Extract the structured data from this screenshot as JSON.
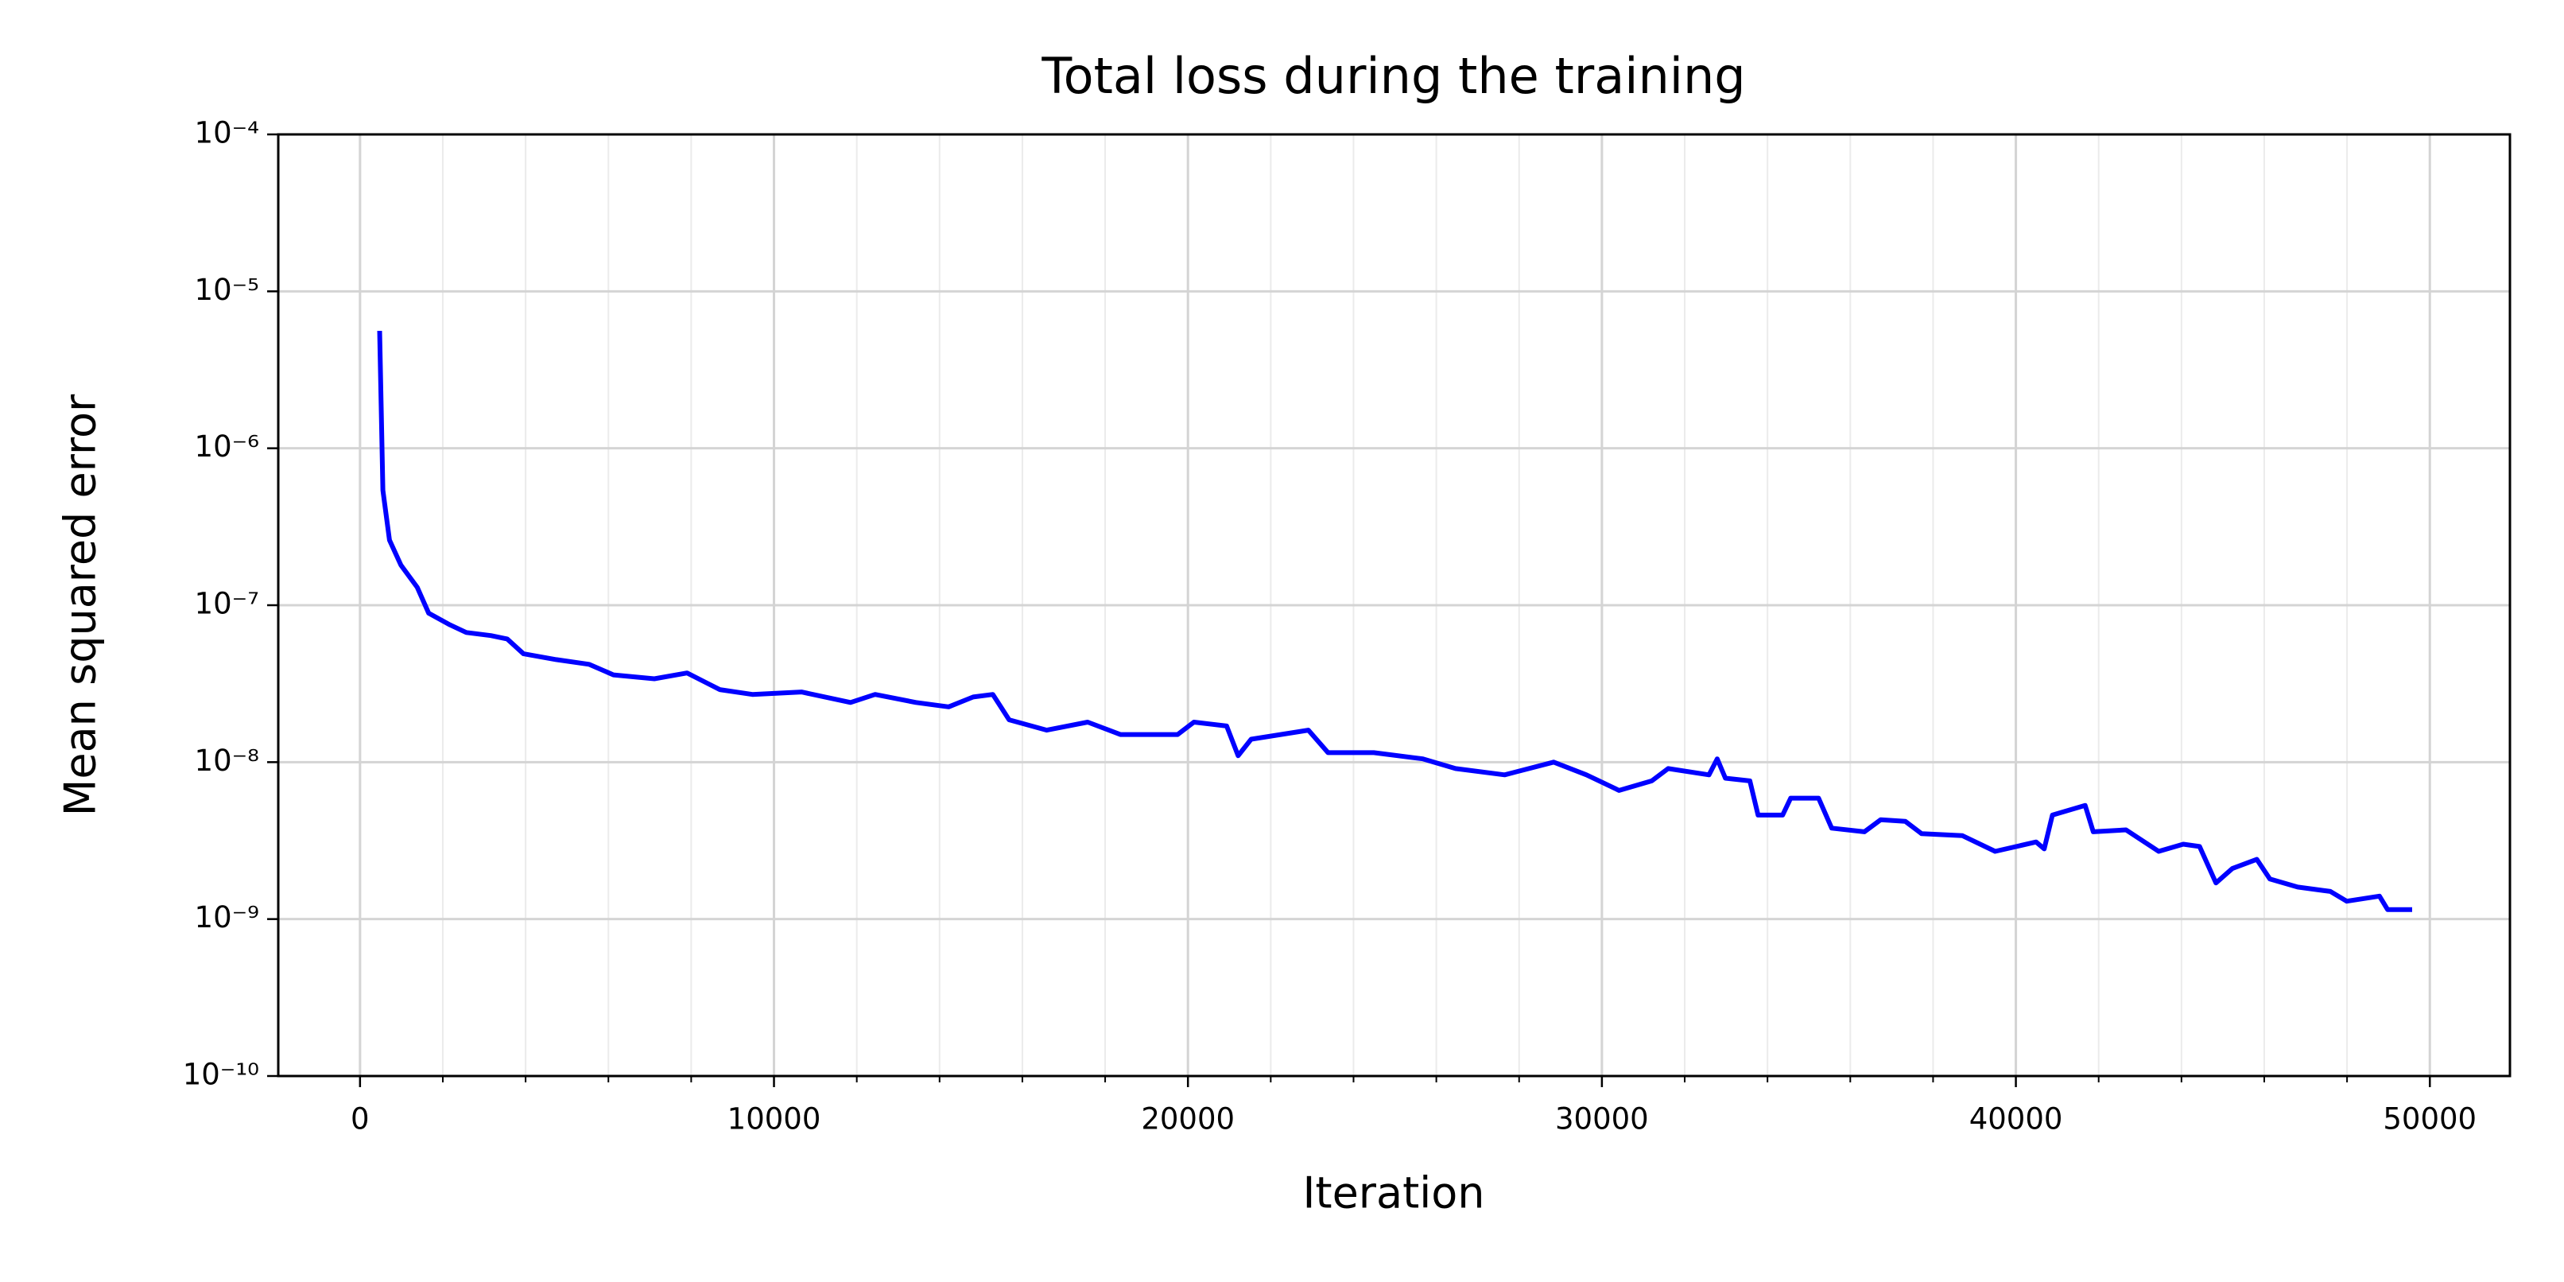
{
  "chart_data": {
    "type": "line",
    "title": "Total loss during the training",
    "x_label": "Iteration",
    "y_label": "Mean squared error",
    "x": [
      474,
      553,
      711,
      988,
      1383,
      1659,
      2173,
      2568,
      3160,
      3555,
      3950,
      4740,
      5530,
      6123,
      7110,
      7900,
      8690,
      9480,
      10665,
      11850,
      12443,
      13430,
      14220,
      14813,
      15286,
      15681,
      16590,
      17578,
      18368,
      19750,
      20145,
      20935,
      21212,
      21527,
      22910,
      23384,
      24490,
      25675,
      26465,
      27650,
      28835,
      29625,
      30415,
      31205,
      31600,
      32588,
      32785,
      32983,
      33575,
      33773,
      34365,
      34560,
      35234,
      35550,
      36340,
      36735,
      37328,
      37723,
      38710,
      39500,
      40488,
      40685,
      40883,
      41673,
      41870,
      42660,
      43450,
      44043,
      44438,
      44833,
      45228,
      45820,
      46136,
      46808,
      47598,
      47993,
      48783,
      48980,
      49573
    ],
    "values": [
      5.6e-06,
      5.4e-07,
      2.6e-07,
      1.8e-07,
      1.3e-07,
      8.9e-08,
      7.5e-08,
      6.7e-08,
      6.4e-08,
      6.1e-08,
      4.9e-08,
      4.5e-08,
      4.2e-08,
      3.6e-08,
      3.4e-08,
      3.7e-08,
      2.9e-08,
      2.7e-08,
      2.8e-08,
      2.4e-08,
      2.7e-08,
      2.4e-08,
      2.25e-08,
      2.6e-08,
      2.7e-08,
      1.86e-08,
      1.6e-08,
      1.8e-08,
      1.5e-08,
      1.5e-08,
      1.8e-08,
      1.7e-08,
      1.1e-08,
      1.4e-08,
      1.6e-08,
      1.15e-08,
      1.15e-08,
      1.05e-08,
      9.1e-09,
      8.3e-09,
      1e-08,
      8.3e-09,
      6.6e-09,
      7.6e-09,
      9.1e-09,
      8.3e-09,
      1.05e-08,
      7.9e-09,
      7.6e-09,
      4.6e-09,
      4.6e-09,
      5.9e-09,
      5.9e-09,
      3.8e-09,
      3.6e-09,
      4.3e-09,
      4.2e-09,
      3.5e-09,
      3.4e-09,
      2.7e-09,
      3.1e-09,
      2.8e-09,
      4.6e-09,
      5.3e-09,
      3.6e-09,
      3.7e-09,
      2.7e-09,
      3e-09,
      2.9e-09,
      1.7e-09,
      2.1e-09,
      2.4e-09,
      1.8e-09,
      1.6e-09,
      1.5e-09,
      1.3e-09,
      1.4e-09,
      1.15e-09,
      1.15e-09
    ],
    "color": "#0000ff",
    "xlim": [
      -1975,
      51935
    ],
    "xticks": [
      0,
      10000,
      20000,
      30000,
      40000,
      50000
    ],
    "xminorticks": [
      2000,
      4000,
      6000,
      8000,
      12000,
      14000,
      16000,
      18000,
      22000,
      24000,
      26000,
      28000,
      32000,
      34000,
      36000,
      38000,
      42000,
      44000,
      46000,
      48000
    ],
    "ylim": [
      1e-10,
      0.0001
    ],
    "ylog": true,
    "yticks": [
      {
        "value": 1e-10,
        "label": "10⁻¹⁰"
      },
      {
        "value": 1e-09,
        "label": "10⁻⁹"
      },
      {
        "value": 1e-08,
        "label": "10⁻⁸"
      },
      {
        "value": 1e-07,
        "label": "10⁻⁷"
      },
      {
        "value": 1e-06,
        "label": "10⁻⁶"
      },
      {
        "value": 1e-05,
        "label": "10⁻⁵"
      },
      {
        "value": 0.0001,
        "label": "10⁻⁴"
      }
    ],
    "grid": true
  }
}
